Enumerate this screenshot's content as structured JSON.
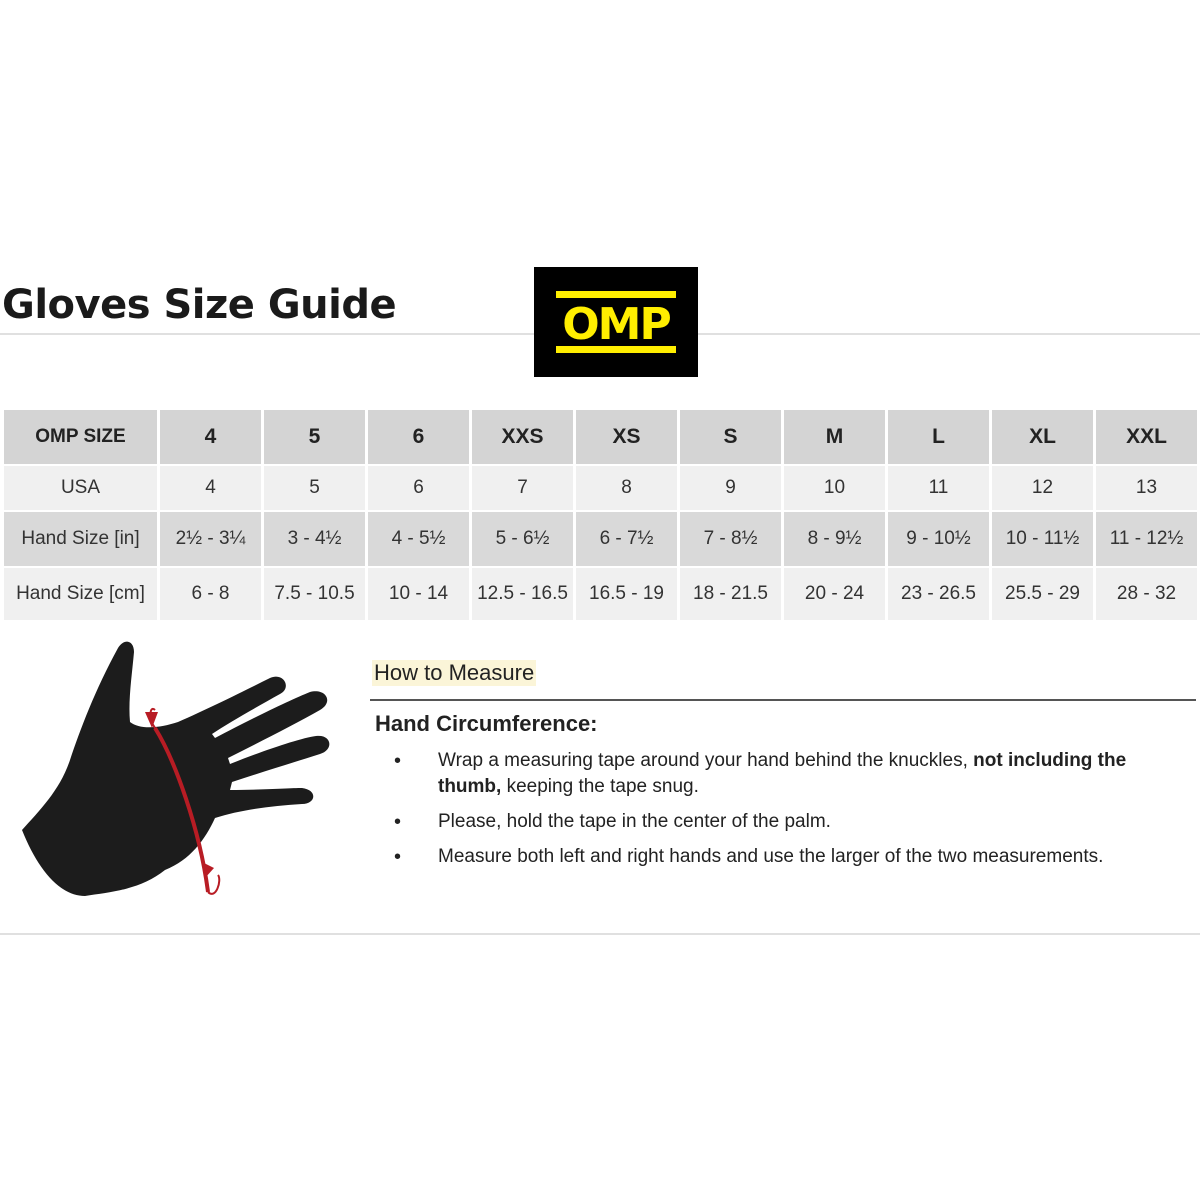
{
  "title": "Gloves Size Guide",
  "logo": {
    "text": "OMP",
    "background": "#000000",
    "color": "#ffee00"
  },
  "table": {
    "header": [
      "OMP SIZE",
      "4",
      "5",
      "6",
      "XXS",
      "XS",
      "S",
      "M",
      "L",
      "XL",
      "XXL"
    ],
    "rows": [
      [
        "USA",
        "4",
        "5",
        "6",
        "7",
        "8",
        "9",
        "10",
        "11",
        "12",
        "13"
      ],
      [
        "Hand Size [in]",
        "2½ - 3¼",
        "3 - 4½",
        "4 - 5½",
        "5 - 6½",
        "6 - 7½",
        "7 - 8½",
        "8 - 9½",
        "9 - 10½",
        "10 - 11½",
        "11 - 12½"
      ],
      [
        "Hand Size [cm]",
        "6 - 8",
        "7.5 - 10.5",
        "10 - 14",
        "12.5 - 16.5",
        "16.5 - 19",
        "18 - 21.5",
        "20 - 24",
        "23 - 26.5",
        "25.5 - 29",
        "28 - 32"
      ]
    ]
  },
  "how_to": {
    "heading": "How to Measure",
    "subheading": "Hand Circumference:",
    "bullets": [
      {
        "pre": "Wrap a measuring tape around your hand behind the knuckles, ",
        "bold": "not including the thumb,",
        "post": " keeping the tape snug."
      },
      {
        "pre": "Please, hold the tape in the center of the palm.",
        "bold": "",
        "post": ""
      },
      {
        "pre": "Measure both left and right hands and use the larger of the two measurements.",
        "bold": "",
        "post": ""
      }
    ]
  },
  "illustration": {
    "icon": "hand-measure-icon",
    "arrow_color": "#b81c24"
  }
}
